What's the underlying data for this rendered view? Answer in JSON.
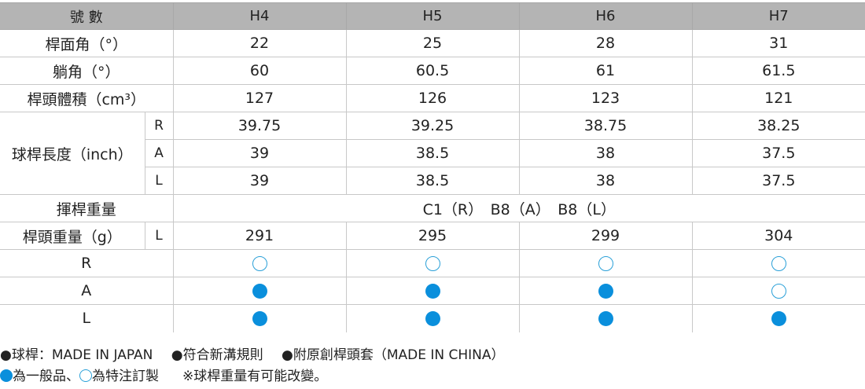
{
  "header": {
    "label": "號 數",
    "models": [
      "H4",
      "H5",
      "H6",
      "H7"
    ]
  },
  "rows": {
    "loft": {
      "label": "桿面角（°）",
      "values": [
        "22",
        "25",
        "28",
        "31"
      ]
    },
    "lie": {
      "label": "躺角（°）",
      "values": [
        "60",
        "60.5",
        "61",
        "61.5"
      ]
    },
    "volume": {
      "label": "桿頭體積（cm³）",
      "values": [
        "127",
        "126",
        "123",
        "121"
      ]
    },
    "length": {
      "label": "球桿長度（inch）",
      "sub": [
        {
          "flex": "R",
          "values": [
            "39.75",
            "39.25",
            "38.75",
            "38.25"
          ]
        },
        {
          "flex": "A",
          "values": [
            "39",
            "38.5",
            "38",
            "37.5"
          ]
        },
        {
          "flex": "L",
          "values": [
            "39",
            "38.5",
            "38",
            "37.5"
          ]
        }
      ]
    },
    "swing": {
      "label": "揮桿重量",
      "value": "C1（R）　B8（A）　B8（L）"
    },
    "headweight": {
      "label": "桿頭重量（g）",
      "flex": "L",
      "values": [
        "291",
        "295",
        "299",
        "304"
      ]
    },
    "availability": [
      {
        "flex": "R",
        "status": [
          "custom",
          "custom",
          "custom",
          "custom"
        ]
      },
      {
        "flex": "A",
        "status": [
          "standard",
          "standard",
          "standard",
          "custom"
        ]
      },
      {
        "flex": "L",
        "status": [
          "standard",
          "standard",
          "standard",
          "standard"
        ]
      }
    ]
  },
  "colors": {
    "standard": "#0a8fdc",
    "custom_outline": "#2aa0d8"
  },
  "footer": {
    "line1": [
      "●球桿：MADE IN JAPAN",
      "●符合新溝規則",
      "●附原創桿頭套（MADE IN CHINA）"
    ],
    "standard_text": "為一般品、",
    "custom_text": "為特注訂製",
    "note": "※球桿重量有可能改變。"
  }
}
